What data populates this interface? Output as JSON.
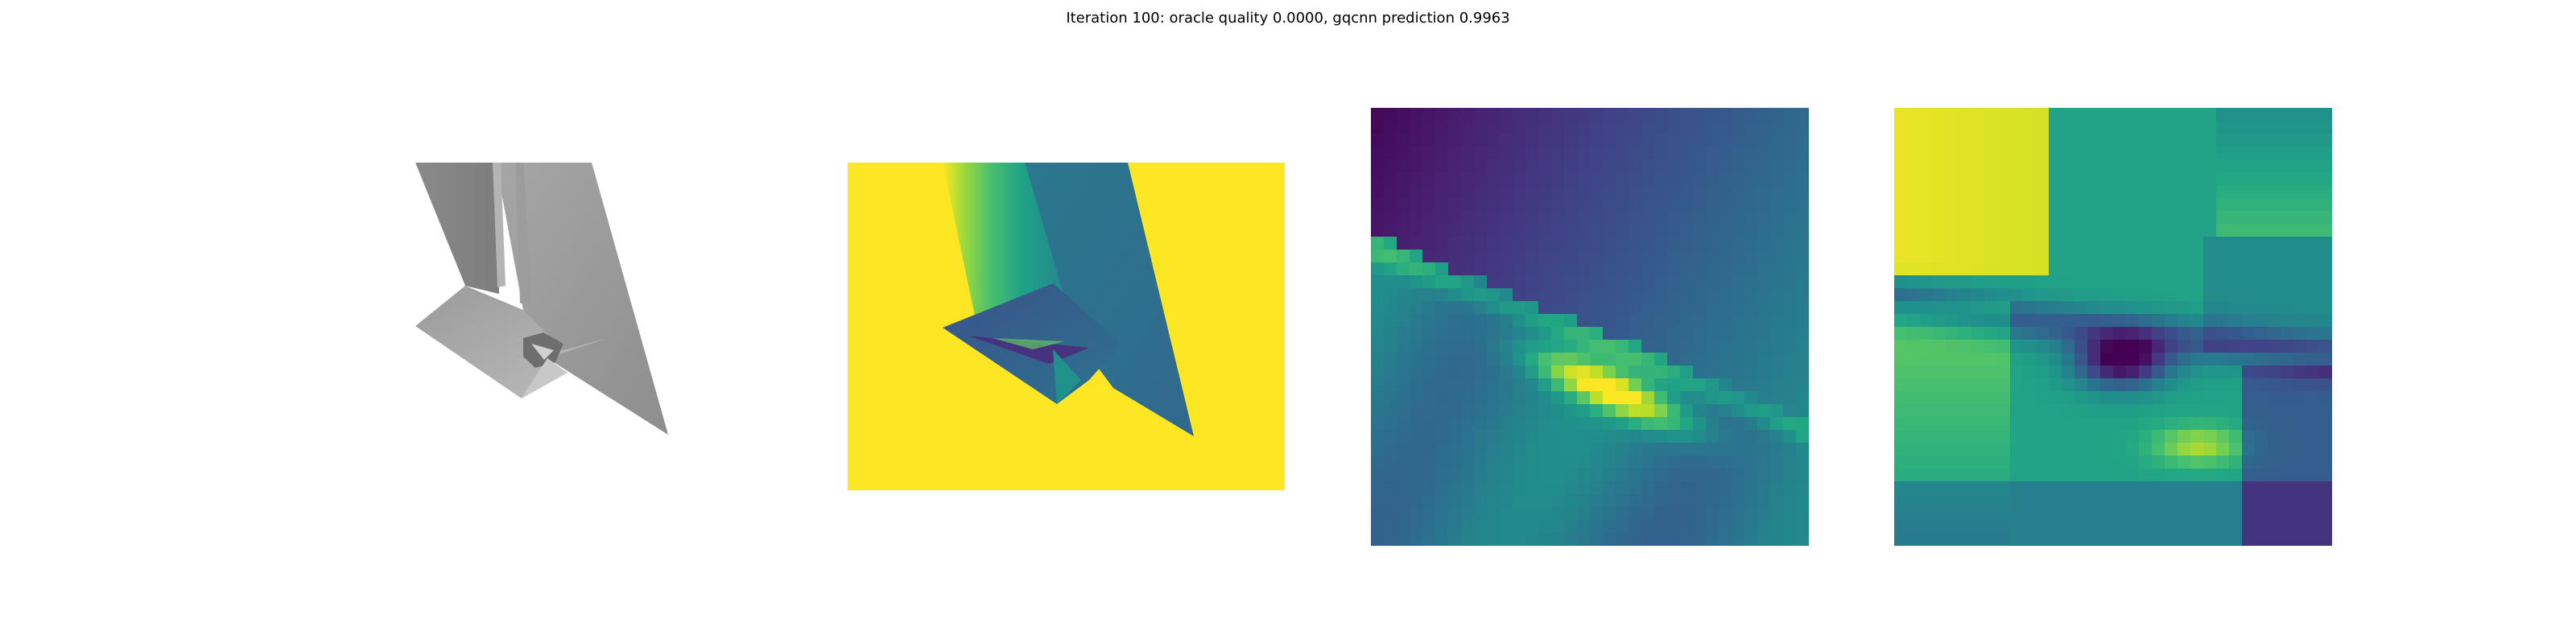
{
  "figure": {
    "title": "Iteration 100: oracle quality 0.0000, gqcnn prediction 0.9963"
  },
  "colors": {
    "background": "#ffffff",
    "viridis_yellow": "#fde725",
    "viridis_purple": "#440154",
    "render_gray": "#8c8c8c"
  },
  "panels": [
    {
      "id": "render",
      "kind": "grayscale-object-render"
    },
    {
      "id": "depth",
      "kind": "viridis-depth-image"
    },
    {
      "id": "crop1",
      "kind": "viridis-depth-crop"
    },
    {
      "id": "crop2",
      "kind": "viridis-depth-crop"
    }
  ]
}
